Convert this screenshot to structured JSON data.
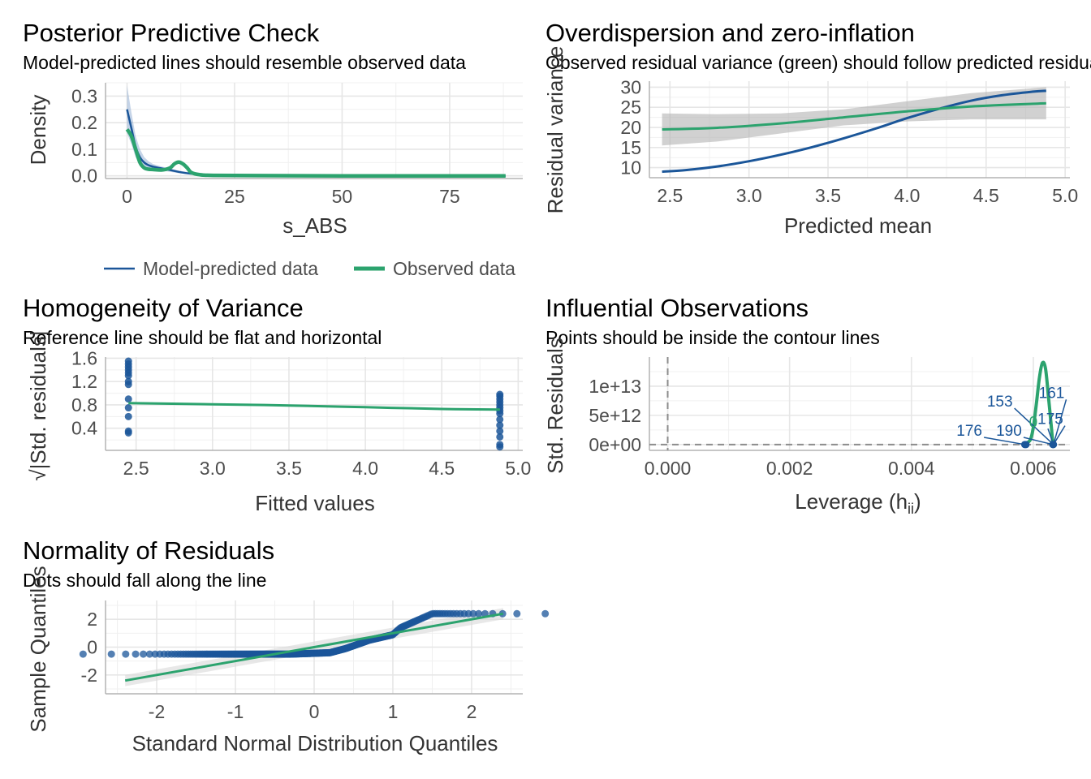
{
  "colors": {
    "model": "#1b5699",
    "observed": "#2ca36e",
    "ribbon": "#b3b3b3",
    "grid": "#e6e6e6",
    "axis": "#b3b3b3",
    "reference": "#8c8c8c"
  },
  "chart_data": [
    {
      "id": "ppc",
      "type": "line",
      "title": "Posterior Predictive Check",
      "subtitle": "Model-predicted lines should resemble observed data",
      "xlabel": "s_ABS",
      "ylabel": "Density",
      "xlim": [
        -5,
        92
      ],
      "ylim": [
        -0.01,
        0.35
      ],
      "xticks": [
        0,
        25,
        50,
        75
      ],
      "yticks": [
        0.0,
        0.1,
        0.2,
        0.3
      ],
      "ytick_labels": [
        "0.0",
        "0.1",
        "0.2",
        "0.3"
      ],
      "grid": true,
      "legend": {
        "position": "bottom",
        "entries": [
          "Model-predicted data",
          "Observed data"
        ]
      },
      "series": [
        {
          "name": "Model-predicted data",
          "color_key": "model",
          "x": [
            0,
            1,
            2,
            3,
            4,
            5,
            6,
            8,
            10,
            12,
            15,
            20,
            30,
            50,
            88
          ],
          "y": [
            0.25,
            0.18,
            0.11,
            0.07,
            0.05,
            0.04,
            0.035,
            0.028,
            0.022,
            0.015,
            0.008,
            0.003,
            0.001,
            0.0,
            0.0
          ],
          "y_upper": [
            0.34,
            0.24,
            0.15,
            0.1,
            0.07,
            0.055,
            0.045,
            0.035,
            0.028,
            0.02,
            0.012,
            0.005,
            0.002,
            0.001,
            0.0
          ],
          "y_lower": [
            0.16,
            0.12,
            0.07,
            0.045,
            0.035,
            0.028,
            0.024,
            0.02,
            0.015,
            0.01,
            0.004,
            0.001,
            0.0,
            0.0,
            0.0
          ]
        },
        {
          "name": "Observed data",
          "color_key": "observed",
          "x": [
            0,
            1,
            2,
            3,
            4,
            5,
            6,
            8,
            10,
            11,
            12,
            13,
            14,
            15,
            17,
            20,
            30,
            50,
            88
          ],
          "y": [
            0.175,
            0.15,
            0.1,
            0.05,
            0.03,
            0.025,
            0.024,
            0.022,
            0.03,
            0.045,
            0.052,
            0.045,
            0.03,
            0.012,
            0.004,
            0.002,
            0.001,
            0.0,
            0.0
          ]
        }
      ]
    },
    {
      "id": "overdispersion",
      "type": "line",
      "title": "Overdispersion and zero-inflation",
      "subtitle": "Observed residual variance (green) should follow predicted residual variance (blue)",
      "xlabel": "Predicted mean",
      "ylabel": "Residual variance",
      "xlim": [
        2.37,
        5.03
      ],
      "ylim": [
        7.5,
        31.5
      ],
      "xticks": [
        2.5,
        3.0,
        3.5,
        4.0,
        4.5,
        5.0
      ],
      "xtick_labels": [
        "2.5",
        "3.0",
        "3.5",
        "4.0",
        "4.5",
        "5.0"
      ],
      "yticks": [
        10,
        15,
        20,
        25,
        30
      ],
      "grid": true,
      "series": [
        {
          "name": "",
          "color_key": "model",
          "x": [
            2.45,
            2.6,
            2.8,
            3.0,
            3.2,
            3.4,
            3.6,
            3.8,
            4.0,
            4.2,
            4.4,
            4.6,
            4.8,
            4.88
          ],
          "y": [
            9.0,
            9.4,
            10.3,
            11.6,
            13.2,
            15.1,
            17.3,
            19.7,
            22.3,
            24.6,
            26.6,
            28.0,
            28.9,
            29.1
          ]
        },
        {
          "name": "",
          "color_key": "observed",
          "x": [
            2.45,
            2.8,
            3.2,
            3.6,
            4.0,
            4.4,
            4.88
          ],
          "y": [
            19.5,
            19.9,
            21.0,
            22.5,
            24.0,
            25.2,
            26.0
          ],
          "y_upper": [
            23.5,
            23.3,
            23.5,
            24.5,
            26.5,
            28.5,
            30.0
          ],
          "y_lower": [
            15.5,
            16.5,
            18.5,
            20.5,
            21.5,
            22.0,
            22.0
          ]
        }
      ]
    },
    {
      "id": "homogeneity",
      "type": "scatter",
      "title": "Homogeneity of Variance",
      "subtitle": "Reference line should be flat and horizontal",
      "xlabel": "Fitted values",
      "ylabel": "√|Std. residuals|",
      "xlim": [
        2.3,
        5.03
      ],
      "ylim": [
        0.02,
        1.62
      ],
      "xticks": [
        2.5,
        3.0,
        3.5,
        4.0,
        4.5,
        5.0
      ],
      "xtick_labels": [
        "2.5",
        "3.0",
        "3.5",
        "4.0",
        "4.5",
        "5.0"
      ],
      "yticks": [
        0.4,
        0.8,
        1.2,
        1.6
      ],
      "ytick_labels": [
        "0.4",
        "0.8",
        "1.2",
        "1.6"
      ],
      "grid": true,
      "points": [
        {
          "x": 2.45,
          "y": 1.55
        },
        {
          "x": 2.45,
          "y": 1.5
        },
        {
          "x": 2.45,
          "y": 1.45
        },
        {
          "x": 2.45,
          "y": 1.4
        },
        {
          "x": 2.45,
          "y": 1.35
        },
        {
          "x": 2.45,
          "y": 1.3
        },
        {
          "x": 2.45,
          "y": 1.2
        },
        {
          "x": 2.45,
          "y": 1.15
        },
        {
          "x": 2.45,
          "y": 0.9
        },
        {
          "x": 2.45,
          "y": 0.75
        },
        {
          "x": 2.45,
          "y": 0.6
        },
        {
          "x": 2.45,
          "y": 0.35
        },
        {
          "x": 2.45,
          "y": 0.32
        },
        {
          "x": 4.88,
          "y": 0.98
        },
        {
          "x": 4.88,
          "y": 0.95
        },
        {
          "x": 4.88,
          "y": 0.9
        },
        {
          "x": 4.88,
          "y": 0.85
        },
        {
          "x": 4.88,
          "y": 0.8
        },
        {
          "x": 4.88,
          "y": 0.75
        },
        {
          "x": 4.88,
          "y": 0.7
        },
        {
          "x": 4.88,
          "y": 0.65
        },
        {
          "x": 4.88,
          "y": 0.55
        },
        {
          "x": 4.88,
          "y": 0.45
        },
        {
          "x": 4.88,
          "y": 0.35
        },
        {
          "x": 4.88,
          "y": 0.25
        },
        {
          "x": 4.88,
          "y": 0.12
        },
        {
          "x": 4.88,
          "y": 0.08
        }
      ],
      "series": [
        {
          "name": "",
          "color_key": "observed",
          "x": [
            2.45,
            3.0,
            3.5,
            4.0,
            4.5,
            4.88
          ],
          "y": [
            0.83,
            0.81,
            0.79,
            0.76,
            0.73,
            0.72
          ]
        }
      ]
    },
    {
      "id": "influential",
      "type": "line",
      "title": "Influential Observations",
      "subtitle": "Points should be inside the contour lines",
      "xlabel": "Leverage (h",
      "xlabel_sub": "ii",
      "xlabel_end": ")",
      "ylabel": "Std. Residuals",
      "xlim": [
        -0.0003,
        0.0066
      ],
      "ylim": [
        -1000000000000.0,
        15000000000000.0
      ],
      "xticks": [
        0.0,
        0.002,
        0.004,
        0.006
      ],
      "xtick_labels": [
        "0.000",
        "0.002",
        "0.004",
        "0.006"
      ],
      "yticks": [
        0,
        5000000000000.0,
        10000000000000.0
      ],
      "ytick_labels": [
        "0e+00",
        "5e+12",
        "1e+13"
      ],
      "grid": true,
      "reference_lines": {
        "vertical_x": 0,
        "horizontal_y": 0
      },
      "series": [
        {
          "name": "",
          "color_key": "observed",
          "x": [
            0.00585,
            0.00595,
            0.006,
            0.00605,
            0.0061,
            0.00615,
            0.0062,
            0.00625,
            0.0063,
            0.00632
          ],
          "y": [
            0,
            800000000000.0,
            3000000000000.0,
            7000000000000.0,
            11500000000000.0,
            14000000000000.0,
            13000000000000.0,
            8000000000000.0,
            2500000000000.0,
            0
          ]
        }
      ],
      "points": [
        {
          "x": 0.00633,
          "y": 0
        },
        {
          "x": 0.00632,
          "y": 0
        },
        {
          "x": 0.00586,
          "y": 0
        },
        {
          "x": 0.00588,
          "y": 0
        }
      ],
      "labels": [
        {
          "text": "153",
          "x": 0.00545,
          "y": 6500000000000.0,
          "to_x": 0.00633,
          "to_y": 0
        },
        {
          "text": "161",
          "x": 0.0063,
          "y": 8000000000000.0,
          "to_x": 0.00633,
          "to_y": 0
        },
        {
          "text": "176",
          "x": 0.00495,
          "y": 1500000000000.0,
          "to_x": 0.00586,
          "to_y": 0
        },
        {
          "text": "190",
          "x": 0.0056,
          "y": 1500000000000.0,
          "to_x": 0.00632,
          "to_y": 0
        },
        {
          "text": "175",
          "x": 0.00628,
          "y": 3500000000000.0,
          "to_x": 0.00633,
          "to_y": 0
        },
        {
          "text": "0",
          "x": 0.006,
          "y": 3000000000000.0,
          "to_x": 0.00633,
          "to_y": 0
        }
      ]
    },
    {
      "id": "normality",
      "type": "scatter",
      "title": "Normality of Residuals",
      "subtitle": "Dots should fall along the line",
      "xlabel": "Standard Normal Distribution Quantiles",
      "ylabel": "Sample Quantiles",
      "xlim": [
        -2.65,
        2.65
      ],
      "ylim": [
        -3.35,
        3.35
      ],
      "xticks": [
        -2,
        -1,
        0,
        1,
        2
      ],
      "yticks": [
        -2,
        0,
        2
      ],
      "grid": true,
      "series": [
        {
          "name": "",
          "color_key": "observed",
          "x": [
            -2.4,
            2.4
          ],
          "y": [
            -2.4,
            2.4
          ],
          "y_upper": [
            -2.0,
            2.8
          ],
          "y_lower": [
            -2.8,
            2.0
          ]
        }
      ]
    }
  ]
}
